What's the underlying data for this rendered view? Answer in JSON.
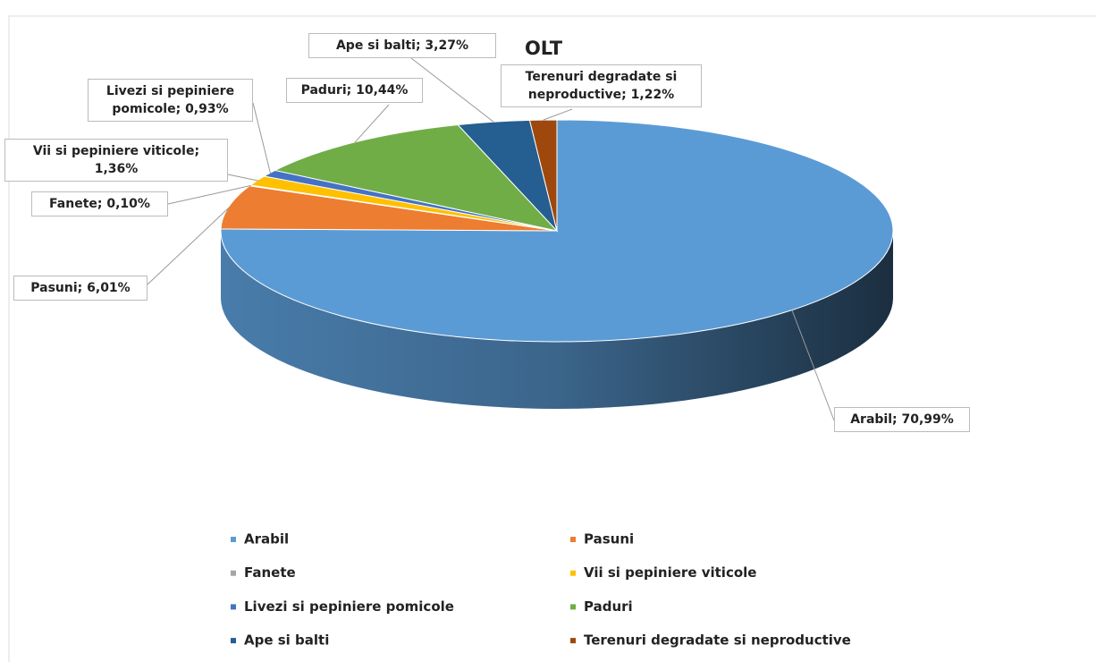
{
  "chart_data": {
    "type": "pie3d",
    "title": "OLT",
    "categories": [
      "Arabil",
      "Pasuni",
      "Fanete",
      "Vii si pepiniere viticole",
      "Livezi si pepiniere pomicole",
      "Paduri",
      "Ape si balti",
      "Terenuri degradate si neproductive"
    ],
    "values": [
      70.99,
      6.01,
      0.1,
      1.36,
      0.93,
      10.44,
      3.27,
      1.22
    ],
    "value_labels": [
      "Arabil; 70,99%",
      "Pasuni; 6,01%",
      "Fanete; 0,10%",
      "Vii si pepiniere viticole; 1,36%",
      "Livezi si pepiniere pomicole; 0,93%",
      "Paduri; 10,44%",
      "Ape si balti; 3,27%",
      "Terenuri degradate si neproductive; 1,22%"
    ],
    "colors": [
      "#5b9bd5",
      "#ed7d31",
      "#a5a5a5",
      "#ffc000",
      "#4472c4",
      "#70ad47",
      "#255e91",
      "#9e480e"
    ],
    "legend": "bottom"
  }
}
